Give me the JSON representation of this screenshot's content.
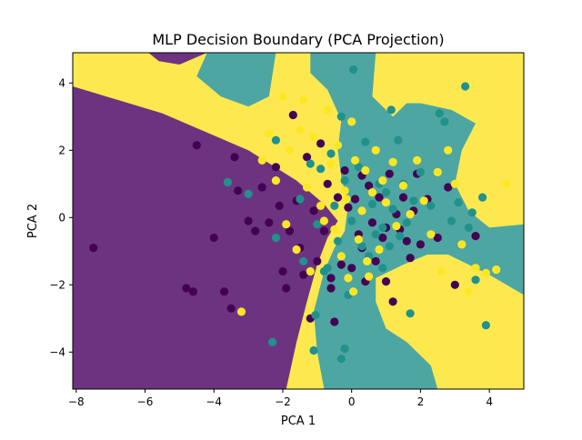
{
  "chart_data": {
    "type": "scatter",
    "title": "MLP Decision Boundary (PCA Projection)",
    "xlabel": "PCA 1",
    "ylabel": "PCA 2",
    "xlim": [
      -8.1,
      5.0
    ],
    "ylim": [
      -5.1,
      4.9
    ],
    "xticks": [
      -8,
      -6,
      -4,
      -2,
      0,
      2,
      4
    ],
    "yticks": [
      -4,
      -2,
      0,
      2,
      4
    ],
    "xtick_labels": [
      "−8",
      "−6",
      "−4",
      "−2",
      "0",
      "2",
      "4"
    ],
    "ytick_labels": [
      "−4",
      "−2",
      "0",
      "2",
      "4"
    ],
    "grid": false,
    "legend": "none",
    "colors": {
      "class_0": "#440154",
      "class_1": "#21918c",
      "class_2": "#fde725",
      "region_0": "#6c3480",
      "region_1": "#4ea6a2",
      "region_2": "#fde94f"
    },
    "decision_regions": [
      {
        "class": 0,
        "polygon": [
          [
            -8.1,
            3.9
          ],
          [
            -5.5,
            3.1
          ],
          [
            -3.0,
            2.0
          ],
          [
            -1.6,
            1.1
          ],
          [
            -0.8,
            0.4
          ],
          [
            -0.4,
            -0.1
          ],
          [
            -0.7,
            -0.6
          ],
          [
            -1.0,
            -1.4
          ],
          [
            -1.3,
            -2.5
          ],
          [
            -1.6,
            -3.7
          ],
          [
            -1.9,
            -5.1
          ],
          [
            -8.1,
            -5.1
          ]
        ]
      },
      {
        "class": 0,
        "polygon": [
          [
            0.4,
            -5.1
          ],
          [
            0.6,
            -4.3
          ],
          [
            1.0,
            -3.8
          ],
          [
            1.5,
            -4.0
          ],
          [
            1.9,
            -4.6
          ],
          [
            2.1,
            -5.1
          ]
        ]
      },
      {
        "class": 0,
        "polygon": [
          [
            -5.9,
            4.9
          ],
          [
            -4.2,
            4.9
          ],
          [
            -5.0,
            4.55
          ],
          [
            -5.6,
            4.65
          ]
        ]
      },
      {
        "class": 1,
        "polygon": [
          [
            -4.2,
            4.9
          ],
          [
            -2.2,
            4.9
          ],
          [
            -2.4,
            3.6
          ],
          [
            -3.0,
            3.3
          ],
          [
            -3.8,
            3.6
          ],
          [
            -4.5,
            4.2
          ]
        ]
      },
      {
        "class": 1,
        "polygon": [
          [
            -1.2,
            4.9
          ],
          [
            0.7,
            4.9
          ],
          [
            0.6,
            3.6
          ],
          [
            1.2,
            3.0
          ],
          [
            1.6,
            3.4
          ],
          [
            2.0,
            3.4
          ],
          [
            2.9,
            3.2
          ],
          [
            3.6,
            2.8
          ],
          [
            3.2,
            2.0
          ],
          [
            3.0,
            1.0
          ],
          [
            3.4,
            0.2
          ],
          [
            4.0,
            -0.3
          ],
          [
            5.0,
            -0.2
          ],
          [
            5.0,
            -2.3
          ],
          [
            4.0,
            -1.7
          ],
          [
            2.8,
            -1.1
          ],
          [
            2.2,
            -1.1
          ],
          [
            1.5,
            -1.4
          ],
          [
            0.7,
            -1.8
          ],
          [
            0.7,
            -2.5
          ],
          [
            1.0,
            -3.3
          ],
          [
            1.6,
            -3.7
          ],
          [
            2.3,
            -4.4
          ],
          [
            2.5,
            -5.1
          ],
          [
            -0.8,
            -5.1
          ],
          [
            -1.0,
            -4.0
          ],
          [
            -1.1,
            -2.8
          ],
          [
            -0.8,
            -1.6
          ],
          [
            -0.5,
            -0.9
          ],
          [
            -0.2,
            -0.4
          ],
          [
            -0.1,
            0.4
          ],
          [
            -0.3,
            1.2
          ],
          [
            -0.4,
            2.0
          ],
          [
            -0.3,
            2.9
          ],
          [
            -0.7,
            3.8
          ],
          [
            -1.2,
            4.3
          ]
        ]
      }
    ],
    "series": [
      {
        "class": 0,
        "points": [
          [
            -7.5,
            -0.9
          ],
          [
            -4.8,
            -2.1
          ],
          [
            -4.6,
            -2.2
          ],
          [
            -4.5,
            2.15
          ],
          [
            -4.0,
            -0.6
          ],
          [
            -3.7,
            -2.2
          ],
          [
            -3.5,
            -2.7
          ],
          [
            -3.4,
            1.8
          ],
          [
            -3.3,
            0.8
          ],
          [
            -3.0,
            -0.1
          ],
          [
            -2.8,
            -0.4
          ],
          [
            -2.6,
            0.9
          ],
          [
            -2.4,
            -0.15
          ],
          [
            -2.2,
            1.5
          ],
          [
            -2.0,
            -1.6
          ],
          [
            -1.9,
            -2.1
          ],
          [
            -1.8,
            -0.4
          ],
          [
            -1.7,
            3.05
          ],
          [
            -1.6,
            0.5
          ],
          [
            -1.5,
            -0.9
          ],
          [
            -1.4,
            -1.7
          ],
          [
            -1.3,
            1.8
          ],
          [
            -1.2,
            -3.0
          ],
          [
            -1.1,
            0.2
          ],
          [
            -1.0,
            -1.3
          ],
          [
            -0.9,
            2.2
          ],
          [
            -0.8,
            -0.4
          ],
          [
            -0.7,
            1.0
          ],
          [
            -0.6,
            -2.1
          ],
          [
            -0.5,
            -3.1
          ],
          [
            -0.4,
            0.6
          ],
          [
            -0.3,
            -1.4
          ],
          [
            -0.2,
            1.4
          ],
          [
            -0.1,
            0.3
          ],
          [
            0.0,
            -1.5
          ],
          [
            0.1,
            0.55
          ],
          [
            0.2,
            -0.5
          ],
          [
            0.3,
            1.25
          ],
          [
            0.4,
            -1.9
          ],
          [
            0.5,
            0.95
          ],
          [
            0.6,
            -0.15
          ],
          [
            0.7,
            -1.3
          ],
          [
            0.8,
            0.6
          ],
          [
            0.9,
            -0.6
          ],
          [
            1.0,
            -1.9
          ],
          [
            1.1,
            1.3
          ],
          [
            1.2,
            -2.5
          ],
          [
            1.3,
            0.1
          ],
          [
            1.4,
            -0.35
          ],
          [
            1.5,
            0.6
          ],
          [
            1.6,
            -0.7
          ],
          [
            1.7,
            -1.2
          ],
          [
            1.8,
            0.2
          ],
          [
            1.9,
            1.3
          ],
          [
            2.0,
            -0.8
          ],
          [
            2.2,
            0.55
          ],
          [
            2.5,
            -0.6
          ],
          [
            2.8,
            0.9
          ],
          [
            3.0,
            -2.0
          ],
          [
            3.6,
            -0.55
          ],
          [
            -2.1,
            0.35
          ],
          [
            -0.6,
            -1.8
          ],
          [
            0.3,
            -0.9
          ],
          [
            1.0,
            -0.3
          ]
        ]
      },
      {
        "class": 1,
        "points": [
          [
            -2.3,
            -3.7
          ],
          [
            -3.6,
            1.05
          ],
          [
            -3.0,
            0.7
          ],
          [
            -2.2,
            2.3
          ],
          [
            -2.2,
            -0.6
          ],
          [
            -1.5,
            0.55
          ],
          [
            -1.4,
            -1.3
          ],
          [
            -1.2,
            1.6
          ],
          [
            -1.1,
            -3.95
          ],
          [
            -1.0,
            -0.2
          ],
          [
            -0.9,
            1.45
          ],
          [
            -0.8,
            -1.6
          ],
          [
            -0.6,
            1.9
          ],
          [
            -0.5,
            0.35
          ],
          [
            -0.4,
            -0.7
          ],
          [
            -0.3,
            3.0
          ],
          [
            -0.3,
            -4.2
          ],
          [
            -0.2,
            1.1
          ],
          [
            -0.1,
            -2.3
          ],
          [
            0.0,
            -0.1
          ],
          [
            0.05,
            4.4
          ],
          [
            0.2,
            1.5
          ],
          [
            0.3,
            -0.85
          ],
          [
            0.4,
            2.25
          ],
          [
            0.5,
            -1.15
          ],
          [
            0.6,
            0.4
          ],
          [
            0.7,
            -0.5
          ],
          [
            0.8,
            1.0
          ],
          [
            0.9,
            -0.3
          ],
          [
            1.0,
            0.75
          ],
          [
            1.1,
            -0.85
          ],
          [
            1.15,
            3.2
          ],
          [
            1.2,
            0.25
          ],
          [
            1.35,
            2.3
          ],
          [
            1.4,
            -0.55
          ],
          [
            1.5,
            1.0
          ],
          [
            1.6,
            -0.15
          ],
          [
            1.7,
            -2.85
          ],
          [
            1.8,
            0.5
          ],
          [
            2.0,
            1.35
          ],
          [
            2.3,
            0.35
          ],
          [
            2.55,
            3.1
          ],
          [
            2.7,
            2.85
          ],
          [
            2.9,
            -0.1
          ],
          [
            3.1,
            0.45
          ],
          [
            3.3,
            3.9
          ],
          [
            3.4,
            -0.3
          ],
          [
            3.5,
            0.15
          ],
          [
            3.6,
            -1.85
          ],
          [
            3.8,
            0.6
          ],
          [
            3.9,
            -3.2
          ],
          [
            0.9,
            -1.5
          ],
          [
            -0.2,
            -3.9
          ],
          [
            -1.05,
            -2.9
          ],
          [
            -0.7,
            -1.5
          ]
        ]
      },
      {
        "class": 2,
        "points": [
          [
            -3.2,
            -2.8
          ],
          [
            -2.6,
            1.7
          ],
          [
            -2.4,
            2.5
          ],
          [
            -2.2,
            1.1
          ],
          [
            -2.0,
            3.6
          ],
          [
            -1.8,
            2.0
          ],
          [
            -1.6,
            -0.95
          ],
          [
            -1.5,
            2.6
          ],
          [
            -1.4,
            3.5
          ],
          [
            -1.3,
            0.9
          ],
          [
            -1.2,
            -1.6
          ],
          [
            -1.1,
            2.4
          ],
          [
            -0.9,
            0.35
          ],
          [
            -0.8,
            -0.1
          ],
          [
            -0.7,
            3.2
          ],
          [
            -0.6,
            1.6
          ],
          [
            -0.5,
            -0.35
          ],
          [
            -0.4,
            2.15
          ],
          [
            -0.3,
            -1.15
          ],
          [
            -0.2,
            0.8
          ],
          [
            -0.1,
            -1.8
          ],
          [
            0.0,
            2.85
          ],
          [
            0.1,
            1.7
          ],
          [
            0.2,
            -0.65
          ],
          [
            0.3,
            0.2
          ],
          [
            0.4,
            1.4
          ],
          [
            0.5,
            -1.75
          ],
          [
            0.6,
            0.75
          ],
          [
            0.7,
            2.0
          ],
          [
            0.8,
            -0.95
          ],
          [
            0.9,
            1.1
          ],
          [
            1.0,
            0.45
          ],
          [
            1.2,
            1.65
          ],
          [
            1.3,
            -0.25
          ],
          [
            1.5,
            0.95
          ],
          [
            1.7,
            0.1
          ],
          [
            1.9,
            1.7
          ],
          [
            2.1,
            0.5
          ],
          [
            2.3,
            -0.5
          ],
          [
            2.5,
            1.35
          ],
          [
            2.6,
            -1.6
          ],
          [
            2.8,
            2.0
          ],
          [
            3.0,
            1.0
          ],
          [
            3.2,
            -0.8
          ],
          [
            3.4,
            -2.2
          ],
          [
            3.6,
            -1.5
          ],
          [
            3.9,
            -1.65
          ],
          [
            4.2,
            -1.55
          ],
          [
            4.5,
            1.0
          ],
          [
            0.05,
            -2.2
          ],
          [
            -0.15,
            0.55
          ],
          [
            0.45,
            -1.3
          ],
          [
            -1.9,
            -0.2
          ]
        ]
      }
    ]
  }
}
